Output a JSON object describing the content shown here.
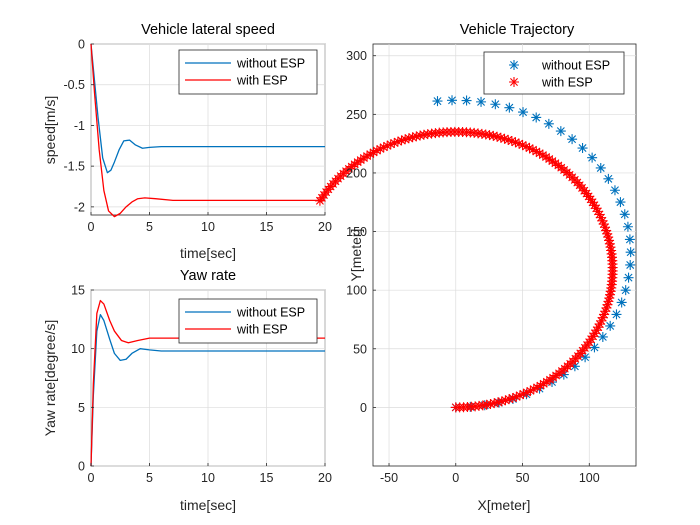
{
  "colors": {
    "without": "#0072BD",
    "with": "#FF0000",
    "axis": "#262626",
    "grid": "#dcdcdc"
  },
  "chart_data": [
    {
      "id": "lateral",
      "type": "line",
      "title": "Vehicle lateral speed",
      "xlabel": "time[sec]",
      "ylabel": "speed[m/s]",
      "xlim": [
        0,
        20
      ],
      "ylim": [
        -2.1,
        0
      ],
      "xticks": [
        0,
        5,
        10,
        15,
        20
      ],
      "yticks": [
        -2,
        -1.5,
        -1,
        -0.5,
        0
      ],
      "ytick_labels": [
        "-2",
        "-1.5",
        "-1",
        "-0.5",
        "0"
      ],
      "grid": true,
      "legend_position": "top-right",
      "series": [
        {
          "name": "without ESP",
          "color_key": "without",
          "points": [
            [
              0,
              0
            ],
            [
              0.3,
              -0.45
            ],
            [
              0.6,
              -0.9
            ],
            [
              1,
              -1.4
            ],
            [
              1.4,
              -1.58
            ],
            [
              1.7,
              -1.55
            ],
            [
              2,
              -1.45
            ],
            [
              2.4,
              -1.3
            ],
            [
              2.8,
              -1.19
            ],
            [
              3.3,
              -1.18
            ],
            [
              3.8,
              -1.24
            ],
            [
              4.4,
              -1.28
            ],
            [
              5,
              -1.27
            ],
            [
              6,
              -1.26
            ],
            [
              8,
              -1.26
            ],
            [
              20,
              -1.26
            ]
          ]
        },
        {
          "name": "with ESP",
          "color_key": "with",
          "points": [
            [
              0,
              0
            ],
            [
              0.3,
              -0.6
            ],
            [
              0.7,
              -1.3
            ],
            [
              1.1,
              -1.8
            ],
            [
              1.5,
              -2.05
            ],
            [
              2,
              -2.12
            ],
            [
              2.5,
              -2.08
            ],
            [
              3,
              -2.0
            ],
            [
              3.5,
              -1.94
            ],
            [
              4,
              -1.9
            ],
            [
              4.6,
              -1.89
            ],
            [
              5.5,
              -1.9
            ],
            [
              7,
              -1.92
            ],
            [
              20,
              -1.92
            ]
          ]
        }
      ]
    },
    {
      "id": "yaw",
      "type": "line",
      "title": "Yaw rate",
      "xlabel": "time[sec]",
      "ylabel": "Yaw rate[degree/s]",
      "xlim": [
        0,
        20
      ],
      "ylim": [
        0,
        15
      ],
      "xticks": [
        0,
        5,
        10,
        15,
        20
      ],
      "yticks": [
        0,
        5,
        10,
        15
      ],
      "ytick_labels": [
        "0",
        "5",
        "10",
        "15"
      ],
      "grid": true,
      "legend_position": "top-right",
      "series": [
        {
          "name": "without ESP",
          "color_key": "without",
          "points": [
            [
              0,
              0
            ],
            [
              0.2,
              6
            ],
            [
              0.5,
              11.5
            ],
            [
              0.8,
              12.9
            ],
            [
              1.1,
              12.4
            ],
            [
              1.6,
              10.8
            ],
            [
              2,
              9.6
            ],
            [
              2.5,
              9.0
            ],
            [
              3,
              9.1
            ],
            [
              3.5,
              9.6
            ],
            [
              4.2,
              10.0
            ],
            [
              5,
              9.9
            ],
            [
              6,
              9.8
            ],
            [
              8,
              9.8
            ],
            [
              20,
              9.8
            ]
          ]
        },
        {
          "name": "with ESP",
          "color_key": "with",
          "points": [
            [
              0,
              0
            ],
            [
              0.2,
              7
            ],
            [
              0.5,
              13
            ],
            [
              0.8,
              14.1
            ],
            [
              1.1,
              13.8
            ],
            [
              1.6,
              12.4
            ],
            [
              2,
              11.5
            ],
            [
              2.6,
              10.7
            ],
            [
              3.2,
              10.5
            ],
            [
              4,
              10.7
            ],
            [
              5,
              10.9
            ],
            [
              7,
              10.9
            ],
            [
              20,
              10.9
            ]
          ]
        }
      ]
    },
    {
      "id": "traj",
      "type": "scatter",
      "title": "Vehicle Trajectory",
      "xlabel": "X[meter]",
      "ylabel": "Y[meter]",
      "xlim": [
        -62,
        135
      ],
      "ylim": [
        -50,
        310
      ],
      "xticks": [
        -50,
        0,
        50,
        100
      ],
      "yticks": [
        0,
        50,
        100,
        150,
        200,
        250,
        300
      ],
      "ytick_labels": [
        "0",
        "50",
        "100",
        "150",
        "200",
        "250",
        "300"
      ],
      "grid": true,
      "marker": "asterisk",
      "legend_position": "top-right",
      "series": [
        {
          "name": "without ESP",
          "color_key": "without",
          "marker_count": 40,
          "circle": {
            "center": [
              0,
              131
            ],
            "radius": 131,
            "start_deg": 0,
            "end_deg": 186,
            "start_point": [
              0,
              0
            ]
          }
        },
        {
          "name": "with ESP",
          "color_key": "with",
          "marker_count": 170,
          "circle": {
            "center": [
              0,
              117.5
            ],
            "radius": 117.5,
            "start_deg": 0,
            "end_deg": 240,
            "start_point": [
              0,
              0
            ]
          }
        }
      ]
    }
  ]
}
